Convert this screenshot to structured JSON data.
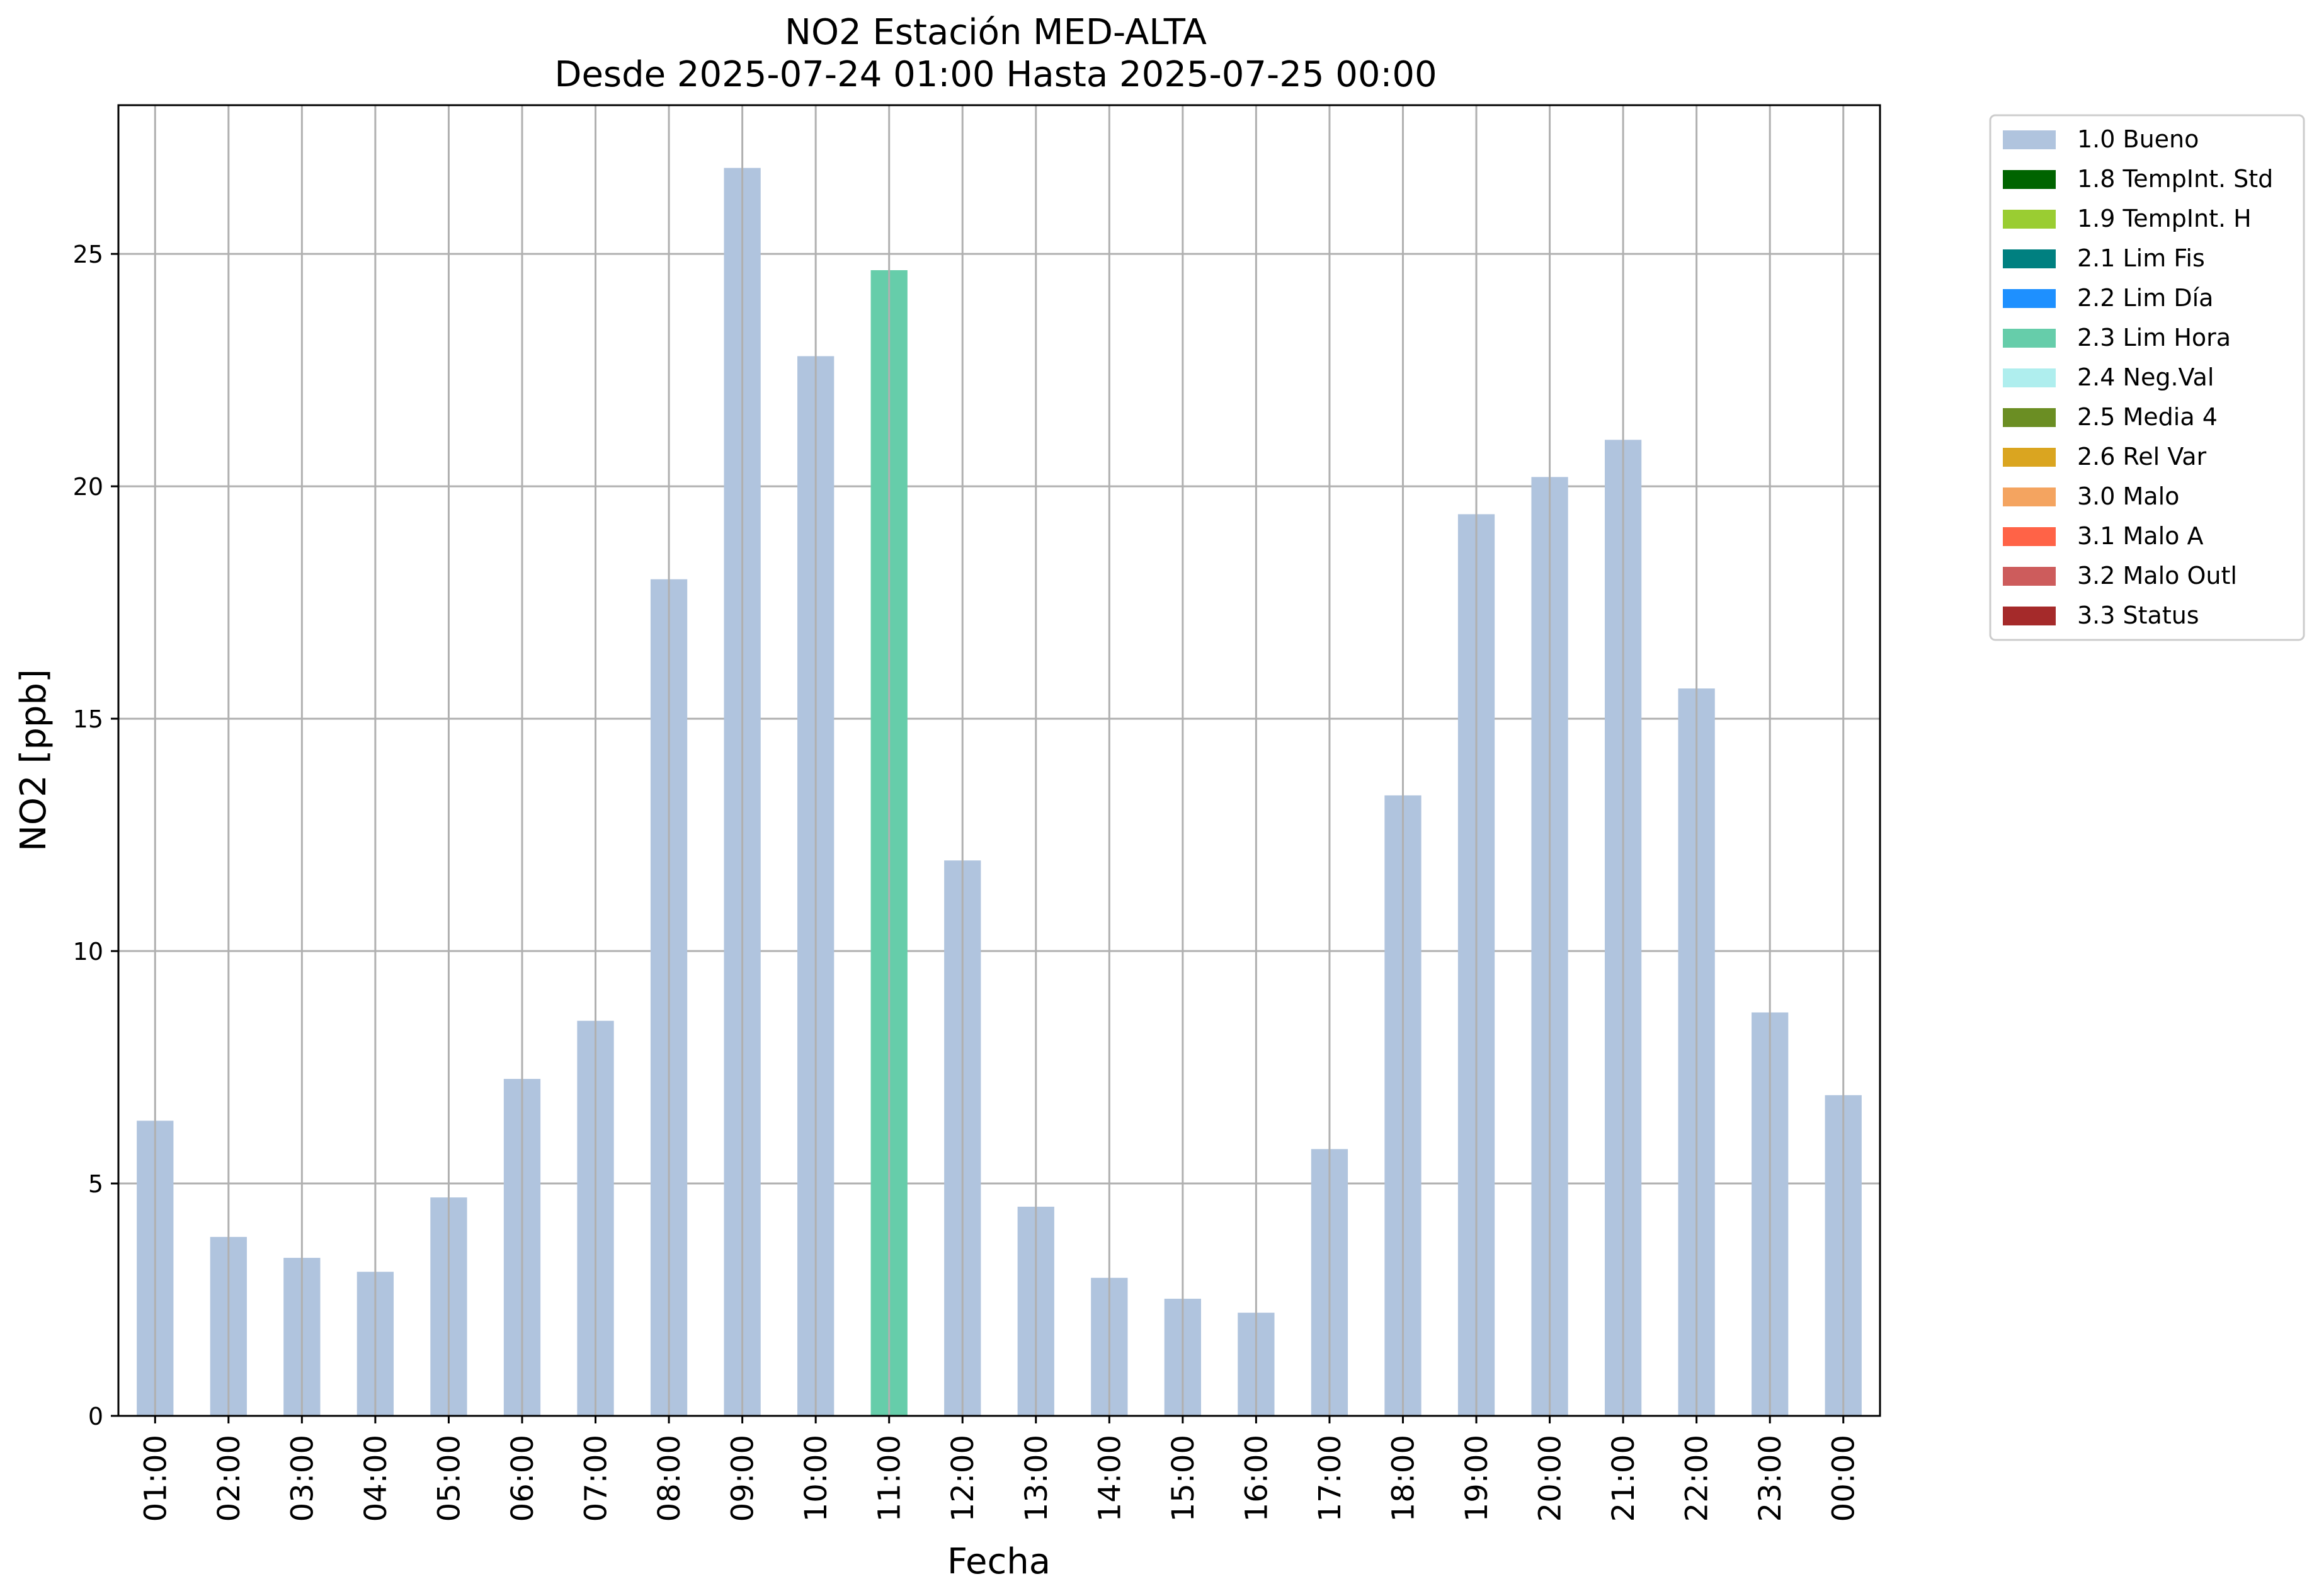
{
  "chart_data": {
    "type": "bar",
    "title": "NO2 Estación MED-ALTA",
    "subtitle": "Desde 2025-07-24 01:00 Hasta 2025-07-25 00:00",
    "xlabel": "Fecha",
    "ylabel": "NO2 [ppb]",
    "ylim": [
      0,
      28.2
    ],
    "yticks": [
      0,
      5,
      10,
      15,
      20,
      25
    ],
    "grid": true,
    "legend_position": "outside-top-right",
    "categories": [
      "01:00",
      "02:00",
      "03:00",
      "04:00",
      "05:00",
      "06:00",
      "07:00",
      "08:00",
      "09:00",
      "10:00",
      "11:00",
      "12:00",
      "13:00",
      "14:00",
      "15:00",
      "16:00",
      "17:00",
      "18:00",
      "19:00",
      "20:00",
      "21:00",
      "22:00",
      "23:00",
      "00:00"
    ],
    "values": [
      6.35,
      3.85,
      3.4,
      3.1,
      4.7,
      7.25,
      8.5,
      18.0,
      26.85,
      22.8,
      24.65,
      11.95,
      4.5,
      2.97,
      2.52,
      2.22,
      5.74,
      13.35,
      19.4,
      20.2,
      21.0,
      15.65,
      8.68,
      6.9
    ],
    "flags": [
      "1.0 Bueno",
      "1.0 Bueno",
      "1.0 Bueno",
      "1.0 Bueno",
      "1.0 Bueno",
      "1.0 Bueno",
      "1.0 Bueno",
      "1.0 Bueno",
      "1.0 Bueno",
      "1.0 Bueno",
      "2.3 Lim Hora",
      "1.0 Bueno",
      "1.0 Bueno",
      "1.0 Bueno",
      "1.0 Bueno",
      "1.0 Bueno",
      "1.0 Bueno",
      "1.0 Bueno",
      "1.0 Bueno",
      "1.0 Bueno",
      "1.0 Bueno",
      "1.0 Bueno",
      "1.0 Bueno",
      "1.0 Bueno"
    ],
    "legend": [
      {
        "label": "1.0 Bueno",
        "color": "#b0c4de"
      },
      {
        "label": "1.8 TempInt. Std",
        "color": "#006400"
      },
      {
        "label": "1.9 TempInt. H",
        "color": "#9acd32"
      },
      {
        "label": "2.1 Lim Fis",
        "color": "#008080"
      },
      {
        "label": "2.2 Lim Día",
        "color": "#1e90ff"
      },
      {
        "label": "2.3 Lim Hora",
        "color": "#66cdaa"
      },
      {
        "label": "2.4 Neg.Val",
        "color": "#afeeee"
      },
      {
        "label": "2.5 Media 4",
        "color": "#6b8e23"
      },
      {
        "label": "2.6 Rel Var",
        "color": "#daa520"
      },
      {
        "label": "3.0 Malo",
        "color": "#f4a460"
      },
      {
        "label": "3.1 Malo A",
        "color": "#ff6347"
      },
      {
        "label": "3.2 Malo Outl",
        "color": "#cd5c5c"
      },
      {
        "label": "3.3 Status",
        "color": "#a52a2a"
      }
    ]
  }
}
